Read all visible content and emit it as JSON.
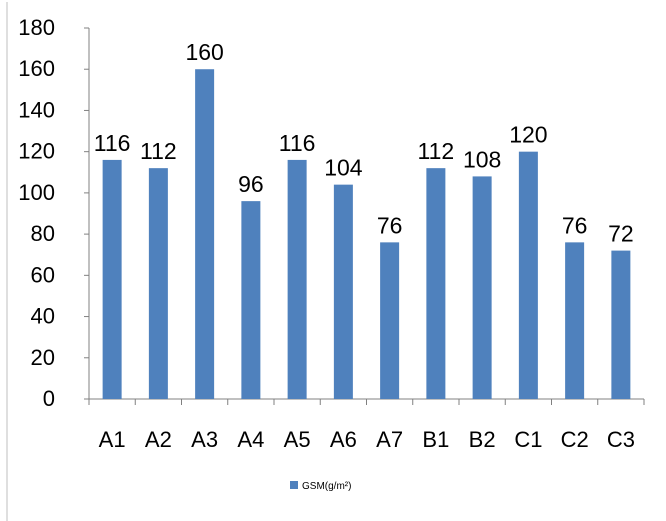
{
  "chart_data": {
    "type": "bar",
    "categories": [
      "A1",
      "A2",
      "A3",
      "A4",
      "A5",
      "A6",
      "A7",
      "B1",
      "B2",
      "C1",
      "C2",
      "C3"
    ],
    "series": [
      {
        "name": "GSM(g/m²)",
        "values": [
          116,
          112,
          160,
          96,
          116,
          104,
          76,
          112,
          108,
          120,
          76,
          72
        ],
        "color": "#4F81BD"
      }
    ],
    "y_ticks": [
      "0",
      "20",
      "40",
      "60",
      "80",
      "100",
      "120",
      "140",
      "160",
      "180"
    ],
    "ylim": [
      0,
      180
    ],
    "data_labels": [
      "116",
      "112",
      "160",
      "96",
      "116",
      "104",
      "76",
      "112",
      "108",
      "120",
      "76",
      "72"
    ],
    "legend_position": "bottom",
    "grid": false
  }
}
